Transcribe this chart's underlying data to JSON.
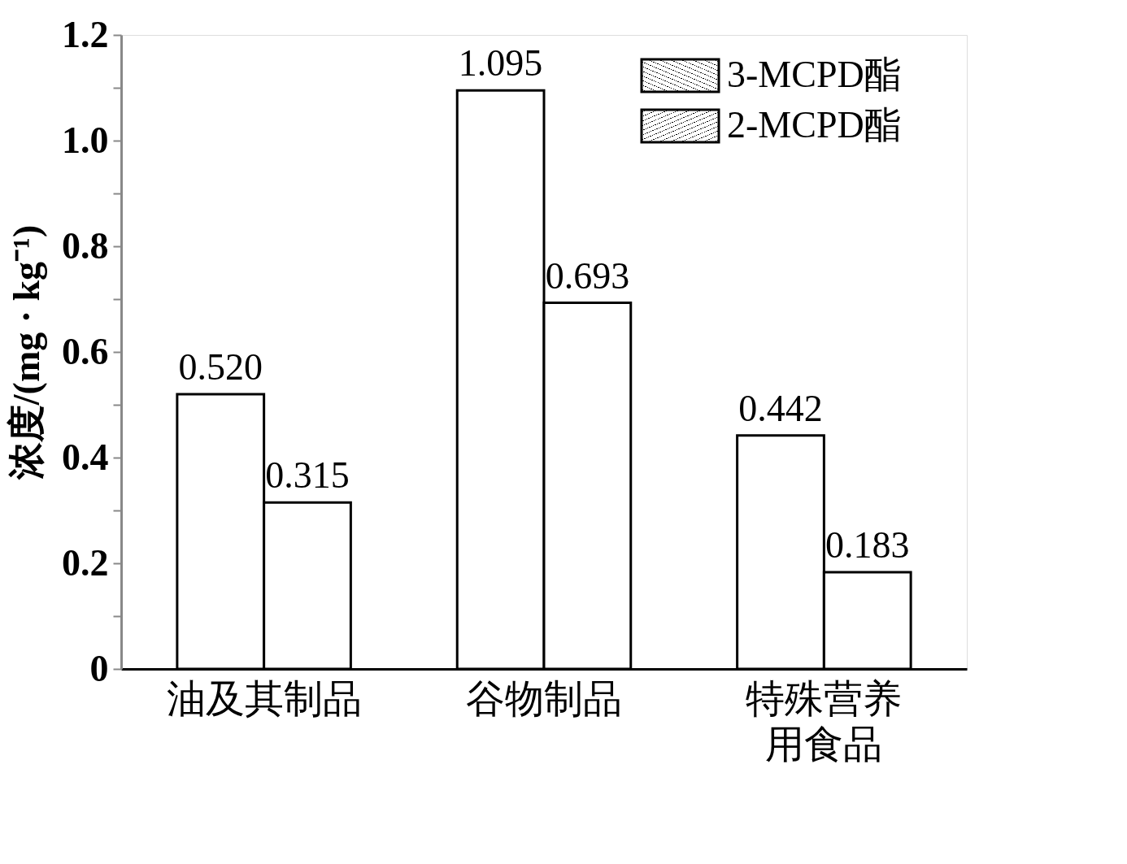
{
  "chart_data": {
    "type": "bar",
    "ylabel": "浓度/(mg · kg⁻¹)",
    "categories": [
      "油及其制品",
      "谷物制品",
      "特殊营养用食品"
    ],
    "series": [
      {
        "name": "3-MCPD酯",
        "color": "#ffffff",
        "values": [
          0.52,
          1.095,
          0.442
        ],
        "value_labels": [
          "0.520",
          "1.095",
          "0.442"
        ]
      },
      {
        "name": "2-MCPD酯",
        "color": "#ffffff",
        "values": [
          0.315,
          0.693,
          0.183
        ],
        "value_labels": [
          "0.315",
          "0.693",
          "0.183"
        ]
      }
    ],
    "ylim": [
      0,
      1.2
    ],
    "yticks": [
      0,
      {
        "value": 0.1,
        "label": null
      },
      0.2,
      {
        "value": 0.3,
        "label": null
      },
      0.4,
      {
        "value": 0.5,
        "label": null
      },
      0.6,
      {
        "value": 0.7,
        "label": null
      },
      0.8,
      {
        "value": 0.9,
        "label": null
      },
      {
        "value": 1.0,
        "label": "1.0"
      },
      {
        "value": 1.1,
        "label": null
      },
      1.2
    ],
    "grid": false,
    "legend": "top right"
  }
}
